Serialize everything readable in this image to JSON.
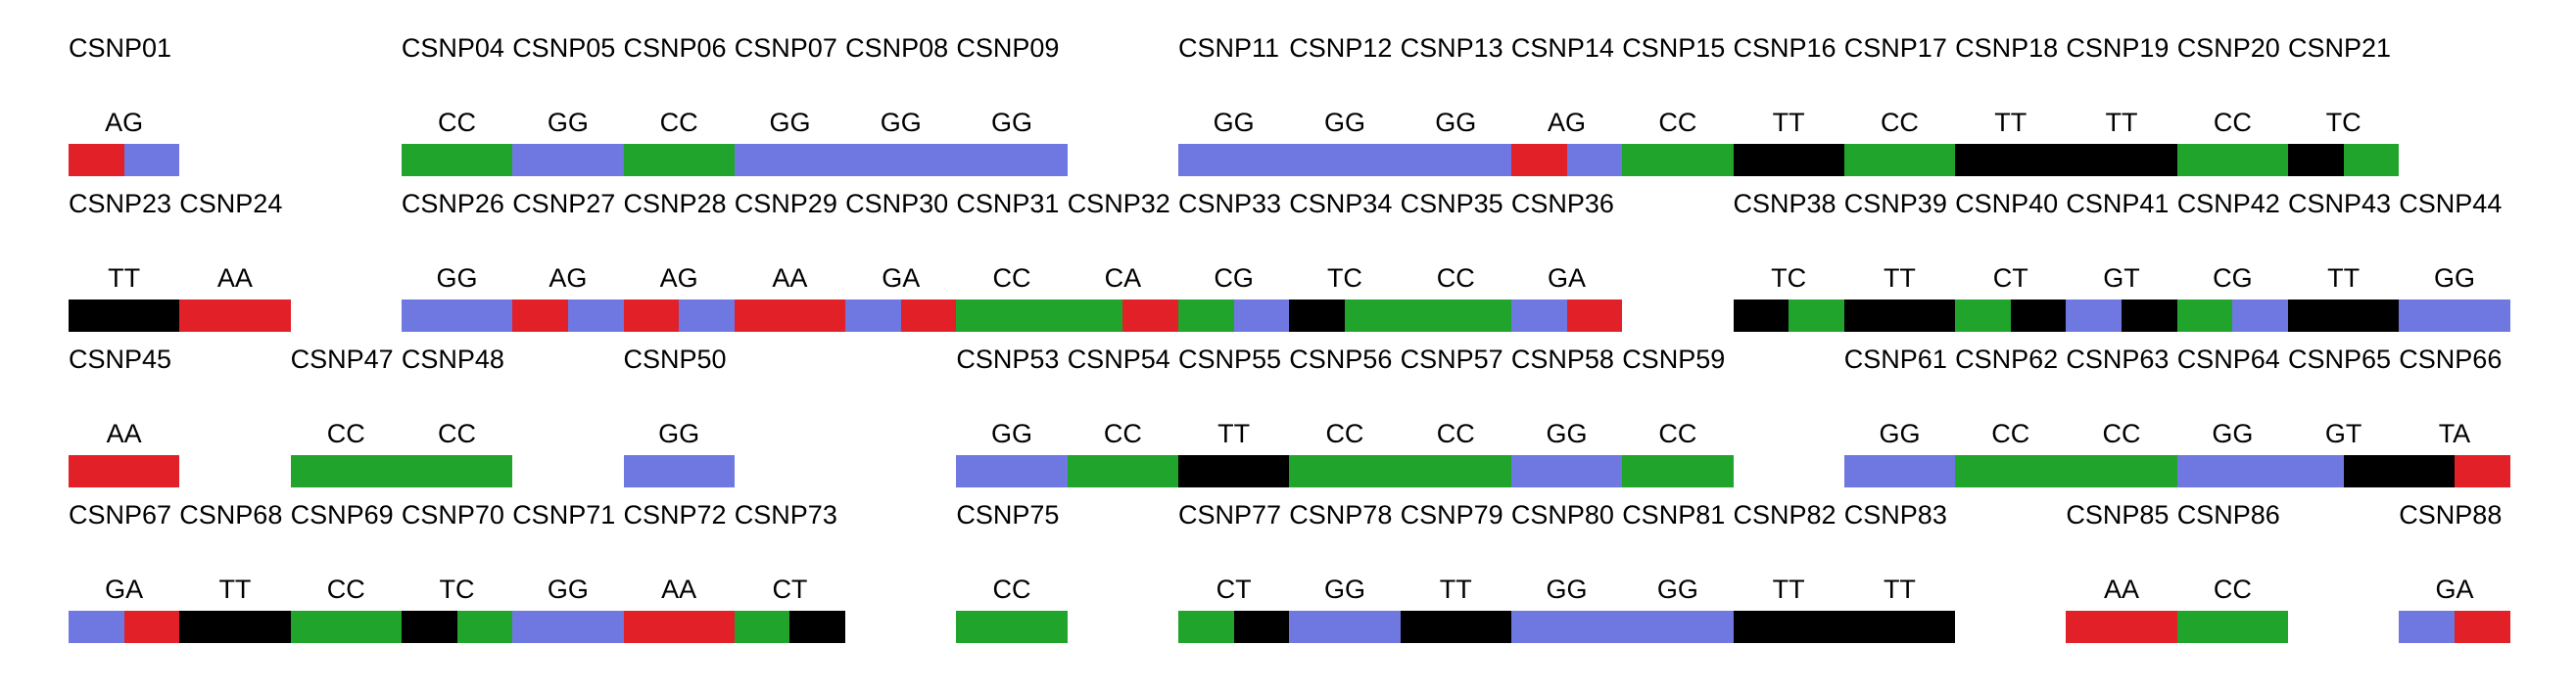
{
  "chart_data": {
    "type": "heatmap",
    "title": "",
    "description": "SNP genotype strip chart. Four rows of SNP cells on a uniform grid; each SNP cell is split into two halves colored by allele nucleotide (A=red, C=green, G=blue, T=black). The SNP name is printed above each cell and the two-letter genotype between name and bar. White gaps correspond to missing SNP numbers.",
    "legend_position": "none",
    "grid": false,
    "allele_colors": {
      "A": "#e22028",
      "C": "#21a42c",
      "G": "#6f77e1",
      "T": "#000000"
    },
    "rows": [
      {
        "first_snp_number": 1,
        "snps": [
          {
            "name": "CSNP01",
            "genotype": "AG"
          },
          {
            "name": "CSNP04",
            "genotype": "CC"
          },
          {
            "name": "CSNP05",
            "genotype": "GG"
          },
          {
            "name": "CSNP06",
            "genotype": "CC"
          },
          {
            "name": "CSNP07",
            "genotype": "GG"
          },
          {
            "name": "CSNP08",
            "genotype": "GG"
          },
          {
            "name": "CSNP09",
            "genotype": "GG"
          },
          {
            "name": "CSNP11",
            "genotype": "GG"
          },
          {
            "name": "CSNP12",
            "genotype": "GG"
          },
          {
            "name": "CSNP13",
            "genotype": "GG"
          },
          {
            "name": "CSNP14",
            "genotype": "AG"
          },
          {
            "name": "CSNP15",
            "genotype": "CC"
          },
          {
            "name": "CSNP16",
            "genotype": "TT"
          },
          {
            "name": "CSNP17",
            "genotype": "CC"
          },
          {
            "name": "CSNP18",
            "genotype": "TT"
          },
          {
            "name": "CSNP19",
            "genotype": "TT"
          },
          {
            "name": "CSNP20",
            "genotype": "CC"
          },
          {
            "name": "CSNP21",
            "genotype": "TC"
          }
        ]
      },
      {
        "first_snp_number": 23,
        "snps": [
          {
            "name": "CSNP23",
            "genotype": "TT"
          },
          {
            "name": "CSNP24",
            "genotype": "AA"
          },
          {
            "name": "CSNP26",
            "genotype": "GG"
          },
          {
            "name": "CSNP27",
            "genotype": "AG"
          },
          {
            "name": "CSNP28",
            "genotype": "AG"
          },
          {
            "name": "CSNP29",
            "genotype": "AA"
          },
          {
            "name": "CSNP30",
            "genotype": "GA"
          },
          {
            "name": "CSNP31",
            "genotype": "CC"
          },
          {
            "name": "CSNP32",
            "genotype": "CA"
          },
          {
            "name": "CSNP33",
            "genotype": "CG"
          },
          {
            "name": "CSNP34",
            "genotype": "TC"
          },
          {
            "name": "CSNP35",
            "genotype": "CC"
          },
          {
            "name": "CSNP36",
            "genotype": "GA"
          },
          {
            "name": "CSNP38",
            "genotype": "TC"
          },
          {
            "name": "CSNP39",
            "genotype": "TT"
          },
          {
            "name": "CSNP40",
            "genotype": "CT"
          },
          {
            "name": "CSNP41",
            "genotype": "GT"
          },
          {
            "name": "CSNP42",
            "genotype": "CG"
          },
          {
            "name": "CSNP43",
            "genotype": "TT"
          },
          {
            "name": "CSNP44",
            "genotype": "GG"
          }
        ]
      },
      {
        "first_snp_number": 45,
        "snps": [
          {
            "name": "CSNP45",
            "genotype": "AA"
          },
          {
            "name": "CSNP47",
            "genotype": "CC"
          },
          {
            "name": "CSNP48",
            "genotype": "CC"
          },
          {
            "name": "CSNP50",
            "genotype": "GG"
          },
          {
            "name": "CSNP53",
            "genotype": "GG"
          },
          {
            "name": "CSNP54",
            "genotype": "CC"
          },
          {
            "name": "CSNP55",
            "genotype": "TT"
          },
          {
            "name": "CSNP56",
            "genotype": "CC"
          },
          {
            "name": "CSNP57",
            "genotype": "CC"
          },
          {
            "name": "CSNP58",
            "genotype": "GG"
          },
          {
            "name": "CSNP59",
            "genotype": "CC"
          },
          {
            "name": "CSNP61",
            "genotype": "GG"
          },
          {
            "name": "CSNP62",
            "genotype": "CC"
          },
          {
            "name": "CSNP63",
            "genotype": "CC"
          },
          {
            "name": "CSNP64",
            "genotype": "GG"
          },
          {
            "name": "CSNP65",
            "genotype": "GT"
          },
          {
            "name": "CSNP66",
            "genotype": "TA"
          }
        ]
      },
      {
        "first_snp_number": 67,
        "snps": [
          {
            "name": "CSNP67",
            "genotype": "GA"
          },
          {
            "name": "CSNP68",
            "genotype": "TT"
          },
          {
            "name": "CSNP69",
            "genotype": "CC"
          },
          {
            "name": "CSNP70",
            "genotype": "TC"
          },
          {
            "name": "CSNP71",
            "genotype": "GG"
          },
          {
            "name": "CSNP72",
            "genotype": "AA"
          },
          {
            "name": "CSNP73",
            "genotype": "CT"
          },
          {
            "name": "CSNP75",
            "genotype": "CC"
          },
          {
            "name": "CSNP77",
            "genotype": "CT"
          },
          {
            "name": "CSNP78",
            "genotype": "GG"
          },
          {
            "name": "CSNP79",
            "genotype": "TT"
          },
          {
            "name": "CSNP80",
            "genotype": "GG"
          },
          {
            "name": "CSNP81",
            "genotype": "GG"
          },
          {
            "name": "CSNP82",
            "genotype": "TT"
          },
          {
            "name": "CSNP83",
            "genotype": "TT"
          },
          {
            "name": "CSNP85",
            "genotype": "AA"
          },
          {
            "name": "CSNP86",
            "genotype": "CC"
          },
          {
            "name": "CSNP88",
            "genotype": "GA"
          }
        ]
      }
    ]
  }
}
